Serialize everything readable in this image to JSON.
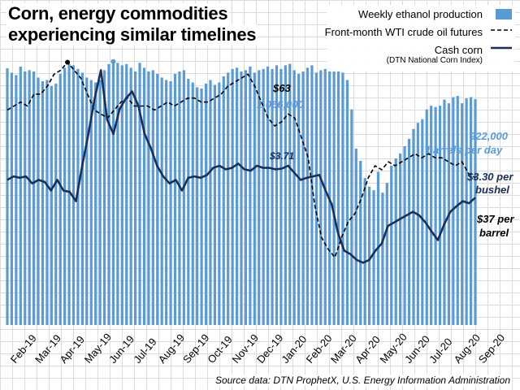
{
  "title": [
    "Corn, energy commodities",
    "experiencing similar timelines"
  ],
  "source": "Source data: DTN ProphetX, U.S. Energy Information Administration",
  "colors": {
    "bars": "#5b9bd5",
    "corn": "#1a2e5a",
    "wti": "#000000"
  },
  "legend": {
    "ethanol": "Weekly ethanol production",
    "wti": "Front-month WTI crude oil futures",
    "corn": "Cash corn",
    "corn_sub": "(DTN National Corn Index)"
  },
  "annotations": {
    "wti_peak": "$63",
    "eth_peak": "1,066,000",
    "corn_jan": "$3.71",
    "eth_end_1": "922,000",
    "eth_end_2": "barrels per day",
    "corn_end_1": "$3.30 per",
    "corn_end_2": "bushel",
    "wti_end_1": "$37 per",
    "wti_end_2": "barrel"
  },
  "chart_data": {
    "type": "bar+line",
    "title": "Corn, energy commodities experiencing similar timelines",
    "x_tick_labels": [
      "Feb-19",
      "Mar-19",
      "Apr-19",
      "May-19",
      "Jun-19",
      "Jul-19",
      "Aug-19",
      "Sep-19",
      "Oct-19",
      "Nov-19",
      "Dec-19",
      "Jan-20",
      "Feb-20",
      "Mar-20",
      "Apr-20",
      "May-20",
      "Jun-20",
      "Jul-20",
      "Aug-20",
      "Sep-20"
    ],
    "ethanol_bpd": {
      "name": "Weekly ethanol production",
      "unit": "barrels per day",
      "ylim": [
        0,
        1300000
      ],
      "values": [
        1048000,
        1030000,
        1020000,
        1055000,
        1035000,
        1040000,
        1035000,
        1010000,
        995000,
        1000000,
        975000,
        985000,
        1025000,
        1050000,
        1065000,
        1060000,
        1045000,
        1030000,
        1010000,
        1000000,
        990000,
        1000000,
        1040000,
        1065000,
        1075000,
        1070000,
        1060000,
        1065000,
        1050000,
        1035000,
        1070000,
        1050000,
        1035000,
        1040000,
        1025000,
        1010000,
        1000000,
        995000,
        1025000,
        1035000,
        1040000,
        1005000,
        990000,
        970000,
        965000,
        985000,
        1000000,
        980000,
        990000,
        1015000,
        1030000,
        1045000,
        1050000,
        1035000,
        1040000,
        1055000,
        1030000,
        1040000,
        1045000,
        1055000,
        1045000,
        1060000,
        1045000,
        1060000,
        1066000,
        1040000,
        1025000,
        1035000,
        1050000,
        1060000,
        1030000,
        1040000,
        1045000,
        1050000,
        1040000,
        1035000,
        1030000,
        1000000,
        880000,
        720000,
        670000,
        600000,
        565000,
        550000,
        625000,
        540000,
        580000,
        650000,
        680000,
        700000,
        730000,
        760000,
        800000,
        825000,
        840000,
        880000,
        895000,
        890000,
        895000,
        920000,
        905000,
        930000,
        935000,
        905000,
        925000,
        930000,
        922000
      ]
    },
    "wti_usd_per_barrel": {
      "name": "Front-month WTI crude oil futures",
      "ylim": [
        0,
        80
      ],
      "values": [
        54,
        55,
        56,
        55,
        58,
        58,
        60,
        63,
        64,
        66,
        64,
        62,
        58,
        54,
        53,
        52,
        54,
        56,
        57,
        55,
        55,
        55,
        54,
        55,
        56,
        55,
        56,
        57,
        57,
        56,
        56,
        57,
        58,
        60,
        61,
        62,
        63,
        60,
        56,
        52,
        50,
        51,
        53,
        52,
        47,
        42,
        30,
        22,
        19,
        17,
        22,
        26,
        28,
        32,
        37,
        40,
        39,
        41,
        40,
        41,
        42,
        43,
        42,
        43,
        42,
        42,
        41,
        40,
        41,
        38,
        37
      ]
    },
    "corn_usd_per_bushel": {
      "name": "Cash corn (DTN National Corn Index)",
      "ylim": [
        1.5,
        6.0
      ],
      "values": [
        3.55,
        3.6,
        3.58,
        3.6,
        3.5,
        3.55,
        3.52,
        3.4,
        3.55,
        3.4,
        3.38,
        3.25,
        3.75,
        4.2,
        4.7,
        5.1,
        4.4,
        4.2,
        4.55,
        4.7,
        4.8,
        4.6,
        4.2,
        4.0,
        3.75,
        3.6,
        3.5,
        3.55,
        3.4,
        3.58,
        3.6,
        3.58,
        3.62,
        3.72,
        3.75,
        3.7,
        3.72,
        3.78,
        3.7,
        3.68,
        3.75,
        3.72,
        3.72,
        3.7,
        3.71,
        3.75,
        3.65,
        3.55,
        3.58,
        3.6,
        3.62,
        3.4,
        3.2,
        2.8,
        2.55,
        2.5,
        2.42,
        2.38,
        2.42,
        2.55,
        2.65,
        2.9,
        2.95,
        3.0,
        3.05,
        3.1,
        3.05,
        2.95,
        2.82,
        2.7,
        2.92,
        3.1,
        3.18,
        3.25,
        3.22,
        3.3
      ]
    }
  }
}
